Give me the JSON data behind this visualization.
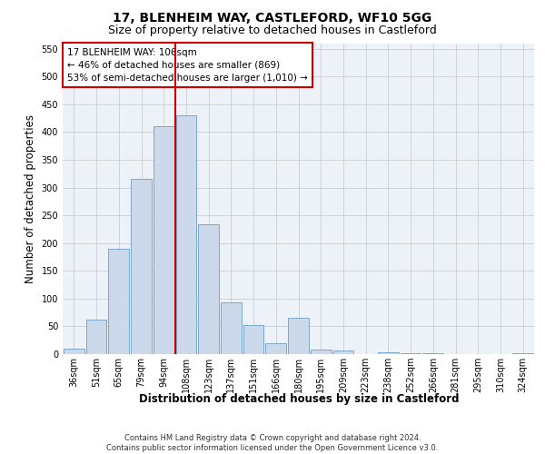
{
  "title1": "17, BLENHEIM WAY, CASTLEFORD, WF10 5GG",
  "title2": "Size of property relative to detached houses in Castleford",
  "xlabel": "Distribution of detached houses by size in Castleford",
  "ylabel": "Number of detached properties",
  "footnote1": "Contains HM Land Registry data © Crown copyright and database right 2024.",
  "footnote2": "Contains public sector information licensed under the Open Government Licence v3.0.",
  "annotation_line1": "17 BLENHEIM WAY: 106sqm",
  "annotation_line2": "← 46% of detached houses are smaller (869)",
  "annotation_line3": "53% of semi-detached houses are larger (1,010) →",
  "bar_color": "#ccd9ea",
  "bar_edge_color": "#7ba7cc",
  "vline_color": "#cc0000",
  "vline_x": 5,
  "categories": [
    "36sqm",
    "51sqm",
    "65sqm",
    "79sqm",
    "94sqm",
    "108sqm",
    "123sqm",
    "137sqm",
    "151sqm",
    "166sqm",
    "180sqm",
    "195sqm",
    "209sqm",
    "223sqm",
    "238sqm",
    "252sqm",
    "266sqm",
    "281sqm",
    "295sqm",
    "310sqm",
    "324sqm"
  ],
  "values": [
    10,
    62,
    190,
    315,
    410,
    430,
    233,
    93,
    52,
    20,
    65,
    8,
    7,
    0,
    4,
    1,
    1,
    0,
    0,
    0,
    1
  ],
  "ylim": [
    0,
    560
  ],
  "yticks": [
    0,
    50,
    100,
    150,
    200,
    250,
    300,
    350,
    400,
    450,
    500,
    550
  ],
  "grid_color": "#cccccc",
  "bg_color": "#edf2f9",
  "box_color": "#cc0000",
  "title_fontsize": 10,
  "subtitle_fontsize": 9,
  "tick_fontsize": 7,
  "xlabel_fontsize": 8.5,
  "ylabel_fontsize": 8.5,
  "annotation_fontsize": 7.5,
  "footnote_fontsize": 6
}
